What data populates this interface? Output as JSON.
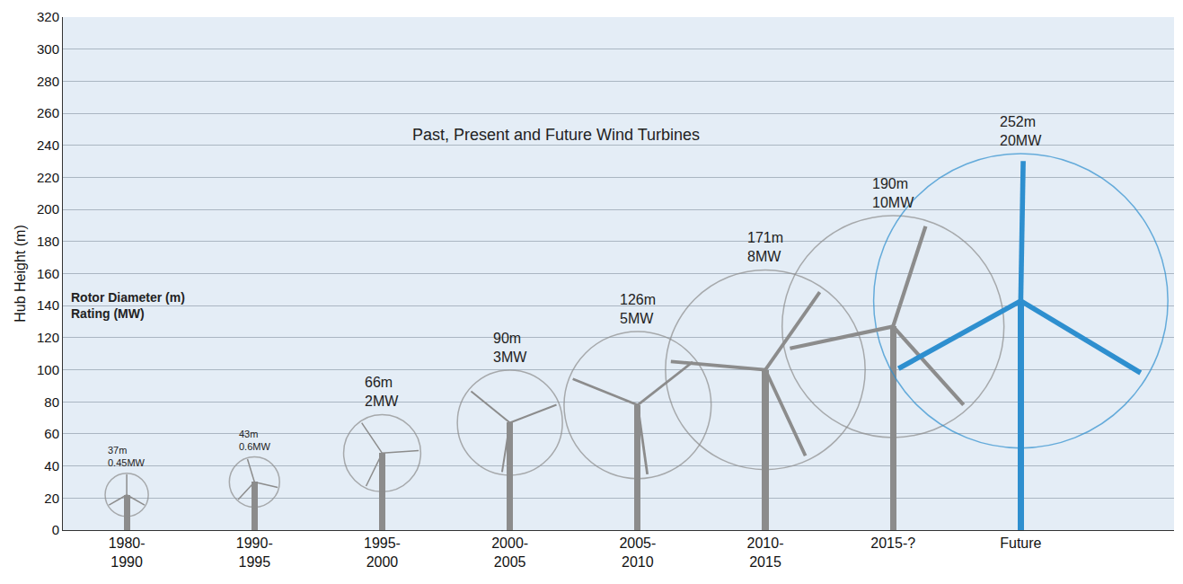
{
  "chart_data": {
    "type": "bar",
    "title": "Past, Present and Future Wind Turbines",
    "y_label": "Hub Height (m)",
    "annotations": [
      "Rotor Diameter (m)",
      "Rating (MW)"
    ],
    "categories": [
      "1980-1990",
      "1990-1995",
      "1995-2000",
      "2000-2005",
      "2005-2010",
      "2010-2015",
      "2015-?",
      "Future"
    ],
    "values": [
      22,
      30,
      48,
      67,
      78,
      100,
      127,
      143
    ],
    "rotor_diameter": {
      "values": [
        37,
        43,
        66,
        90,
        126,
        171,
        190,
        252
      ],
      "value_labels": [
        "37m",
        "43m",
        "66m",
        "90m",
        "126m",
        "171m",
        "190m",
        "252m"
      ]
    },
    "rating": {
      "values": [
        0.45,
        0.6,
        2,
        3,
        5,
        8,
        10,
        20
      ],
      "value_labels": [
        "0.45MW",
        "0.6MW",
        "2MW",
        "3MW",
        "5MW",
        "8MW",
        "10MW",
        "20MW"
      ]
    },
    "colors": [
      "#8c8c8c",
      "#8c8c8c",
      "#8c8c8c",
      "#8c8c8c",
      "#8c8c8c",
      "#8c8c8c",
      "#8c8c8c",
      "#2e8fcf"
    ],
    "ylim": [
      0,
      320
    ],
    "yticks": [
      0,
      20,
      40,
      60,
      80,
      100,
      120,
      140,
      160,
      180,
      200,
      220,
      240,
      260,
      280,
      300,
      320
    ],
    "grid": true,
    "data_labels": true
  }
}
